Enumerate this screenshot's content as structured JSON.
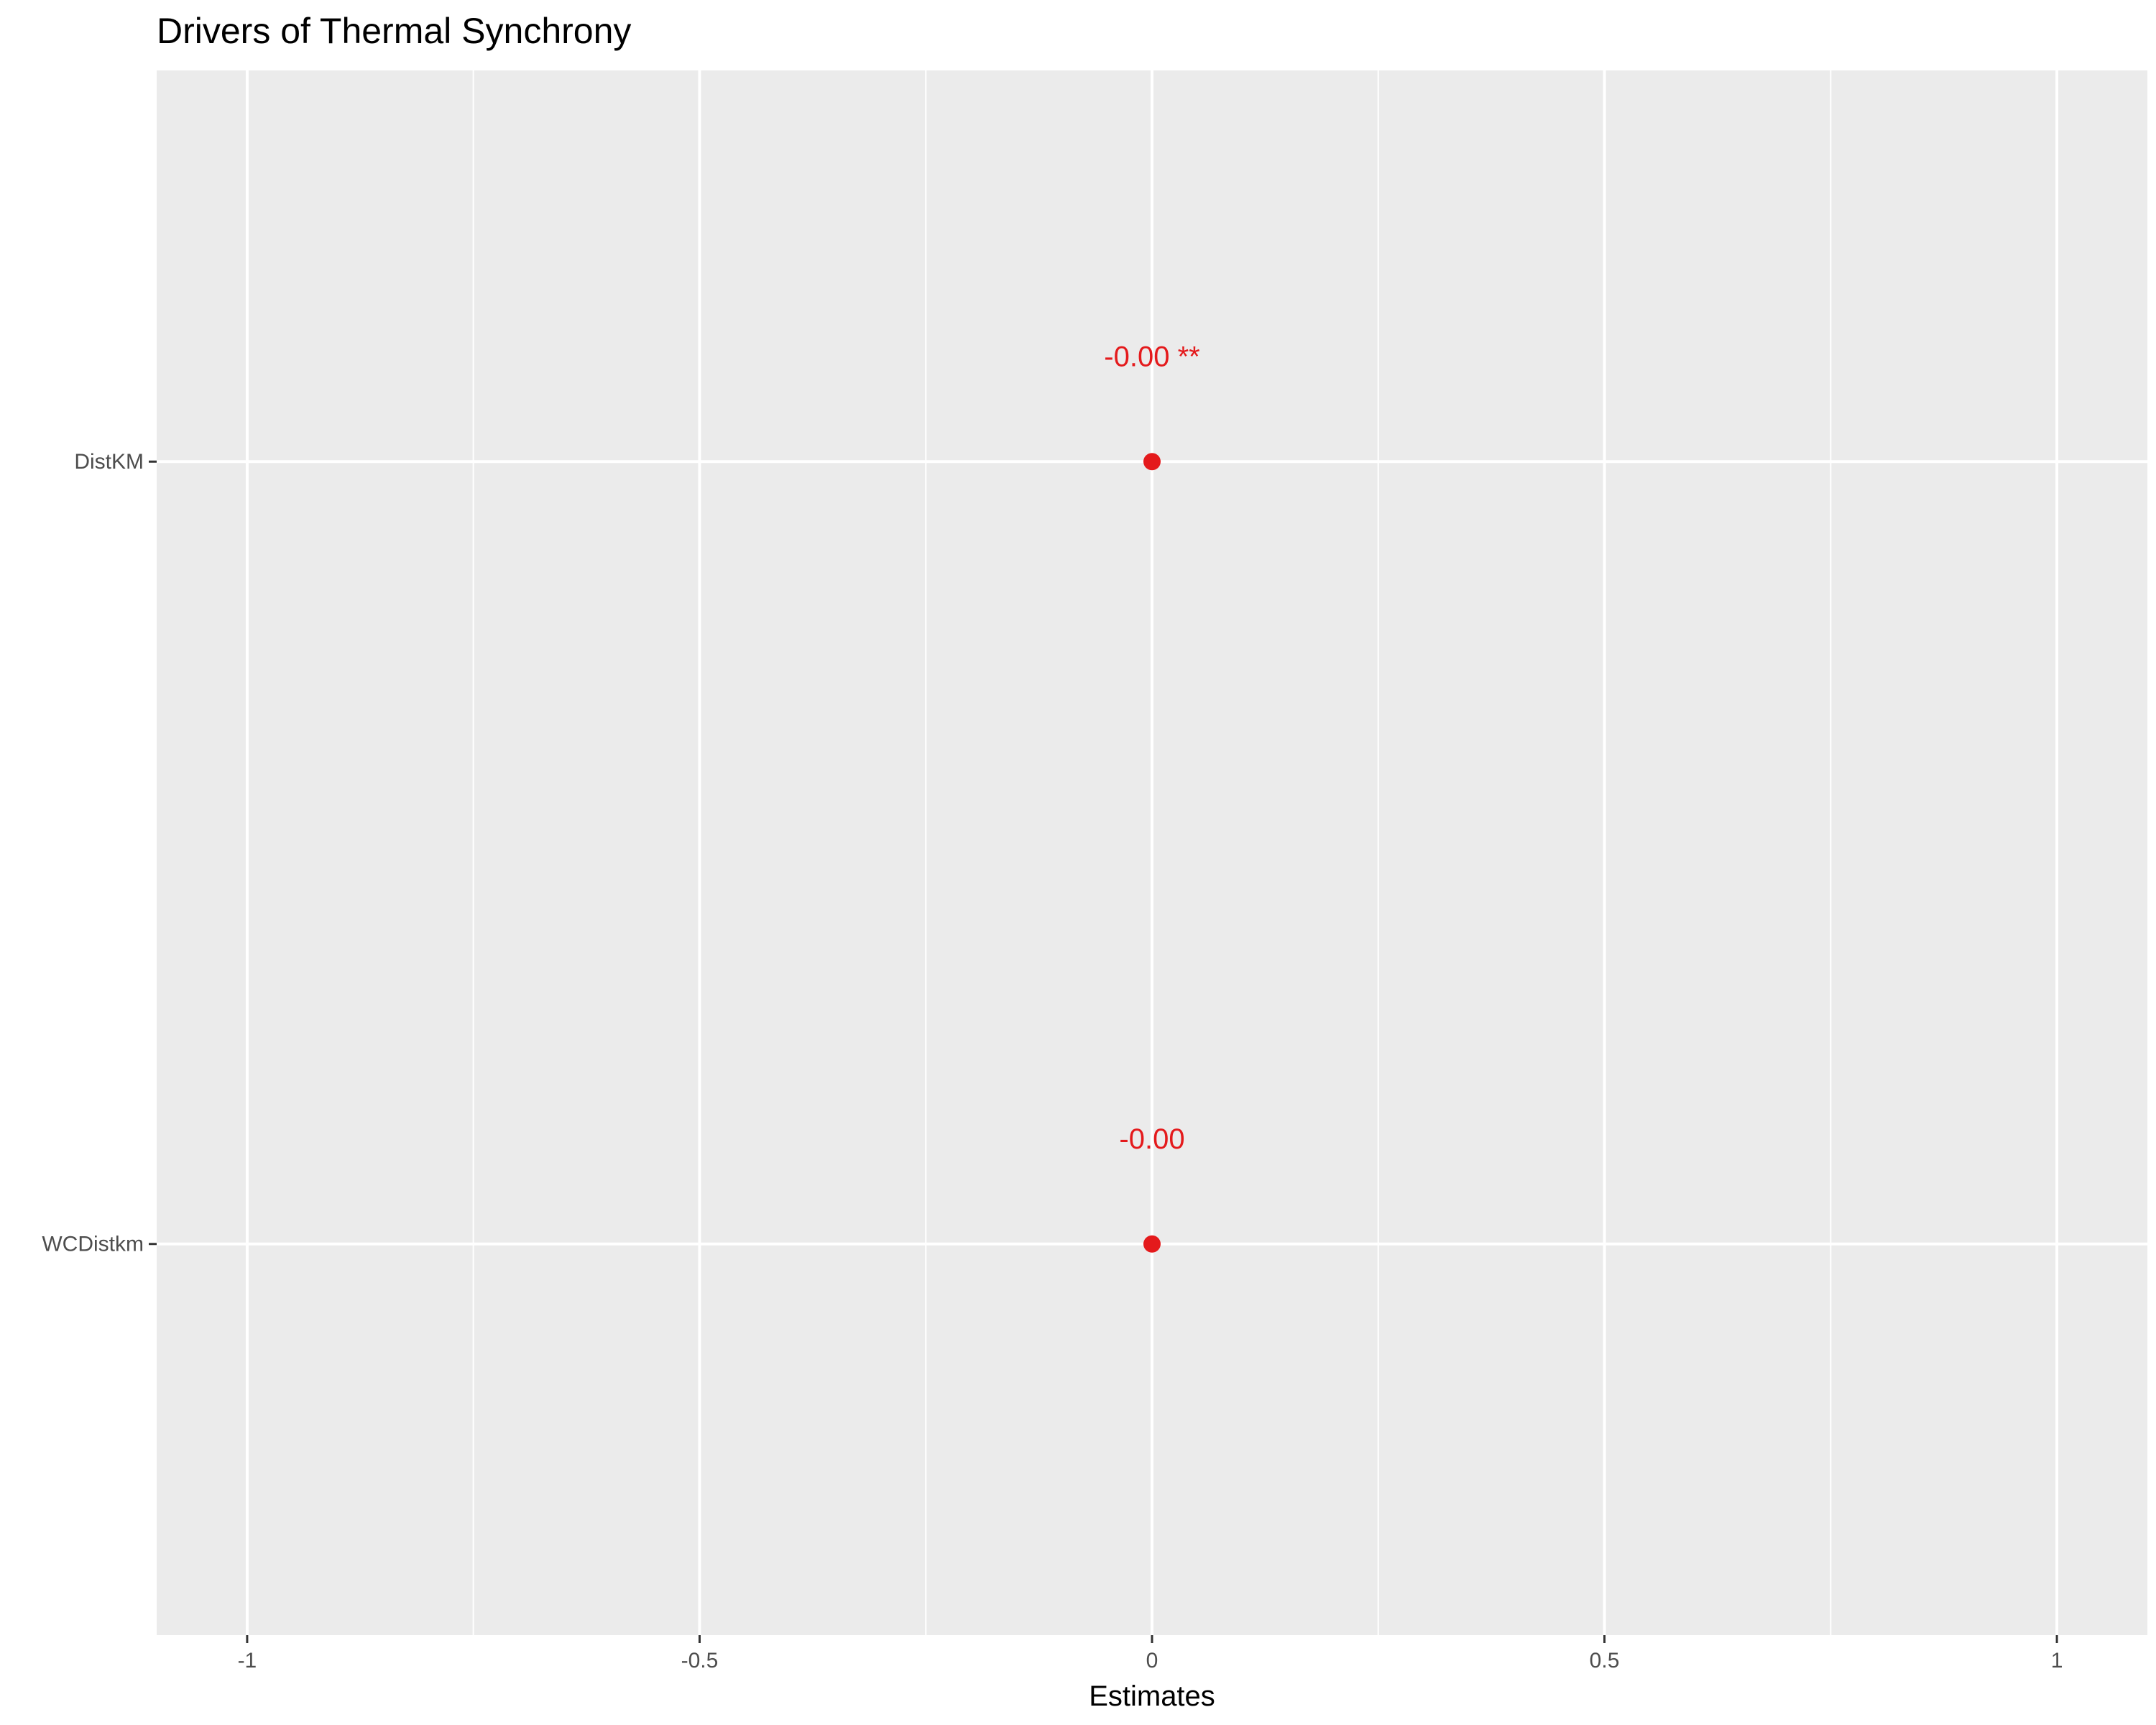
{
  "chart_data": {
    "type": "scatter",
    "title": "Drivers of Thermal Synchrony",
    "xlabel": "Estimates",
    "ylabel": "",
    "xlim": [
      -1.1,
      1.1
    ],
    "x_ticks": [
      -1,
      -0.5,
      0,
      0.5,
      1
    ],
    "x_tick_labels": [
      "-1",
      "-0.5",
      "0",
      "0.5",
      "1"
    ],
    "x_minor_ticks": [
      -0.75,
      -0.25,
      0.25,
      0.75
    ],
    "categories": [
      "DistKM",
      "WCDistkm"
    ],
    "points": [
      {
        "term": "DistKM",
        "estimate": 0.0,
        "label": "-0.00 **"
      },
      {
        "term": "WCDistkm",
        "estimate": 0.0,
        "label": "-0.00"
      }
    ],
    "grid": true,
    "legend": "none",
    "colors": {
      "point": "#e41a1c",
      "panel_background": "#ebebeb",
      "grid": "#ffffff"
    }
  }
}
